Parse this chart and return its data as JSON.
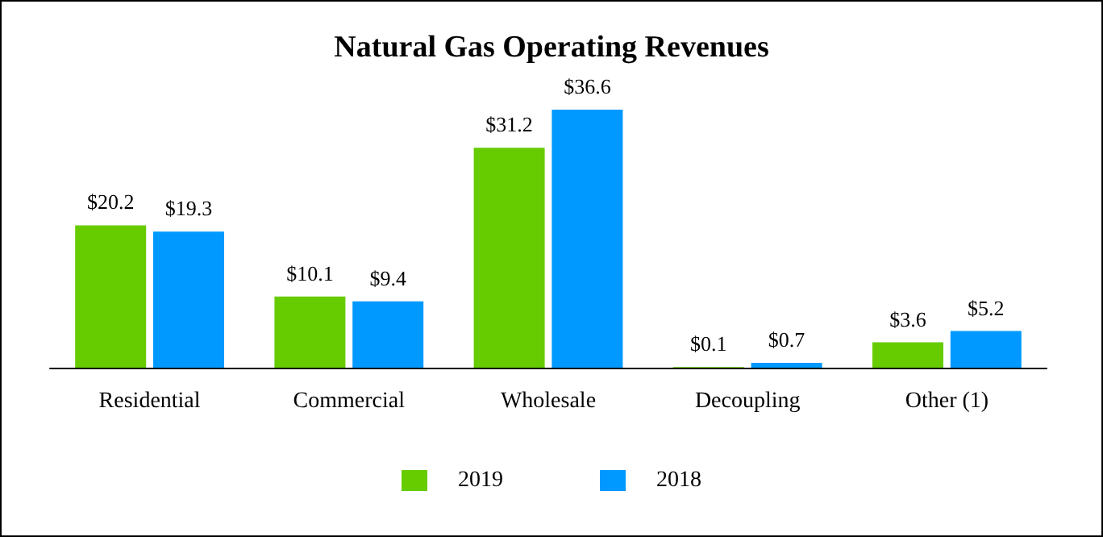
{
  "chart_data": {
    "type": "bar",
    "title": "Natural Gas Operating Revenues",
    "categories": [
      "Residential",
      "Commercial",
      "Wholesale",
      "Decoupling",
      "Other (1)"
    ],
    "series": [
      {
        "name": "2019",
        "color": "#66cc00",
        "values": [
          20.2,
          10.1,
          31.2,
          0.1,
          3.6
        ],
        "value_labels": [
          "$20.2",
          "$10.1",
          "$31.2",
          "$0.1",
          "$3.6"
        ]
      },
      {
        "name": "2018",
        "color": "#0099ff",
        "values": [
          19.3,
          9.4,
          36.6,
          0.7,
          5.2
        ],
        "value_labels": [
          "$19.3",
          "$9.4",
          "$36.6",
          "$0.7",
          "$5.2"
        ]
      }
    ],
    "legend": "bottom"
  }
}
